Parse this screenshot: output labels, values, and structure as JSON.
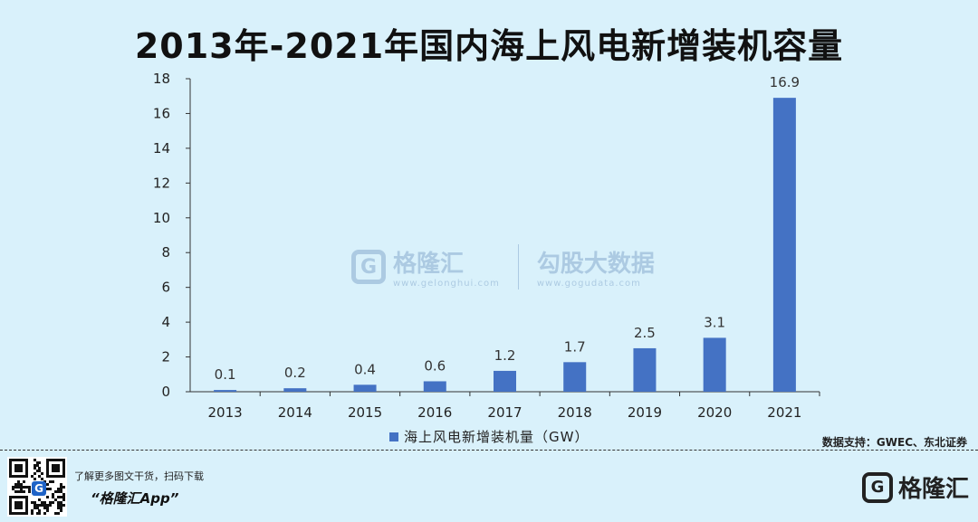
{
  "header": {
    "title": "2013年-2021年国内海上风电新增装机容量"
  },
  "chart_data": {
    "type": "bar",
    "categories": [
      "2013",
      "2014",
      "2015",
      "2016",
      "2017",
      "2018",
      "2019",
      "2020",
      "2021"
    ],
    "series": [
      {
        "name": "海上风电新增装机量（GW）",
        "values": [
          0.1,
          0.2,
          0.4,
          0.6,
          1.2,
          1.7,
          2.5,
          3.1,
          16.9
        ]
      }
    ],
    "data_labels": [
      "0.1",
      "0.2",
      "0.4",
      "0.6",
      "1.2",
      "1.7",
      "2.5",
      "3.1",
      "16.9"
    ],
    "yticks": [
      "0",
      "2",
      "4",
      "6",
      "8",
      "10",
      "12",
      "14",
      "16",
      "18"
    ],
    "ylim": [
      0,
      18
    ],
    "grid": false,
    "legend_position": "bottom",
    "bar_color": "#4472c4"
  },
  "legend": {
    "label": "海上风电新增装机量（GW）"
  },
  "source": {
    "text": "数据支持：GWEC、东北证券"
  },
  "watermark": {
    "brand": "格隆汇",
    "brand_url": "www.gelonghui.com",
    "gogu": "勾股大数据",
    "gogu_url": "www.gogudata.com",
    "g_letter": "G"
  },
  "footer": {
    "promo": "了解更多图文干货，扫码下载",
    "app": "“格隆汇App”",
    "logo_text": "格隆汇",
    "logo_letter": "G",
    "qr_letter": "G"
  },
  "colors": {
    "background": "#d9f1fb",
    "bar": "#4472c4",
    "watermark": "#5a84b5"
  }
}
